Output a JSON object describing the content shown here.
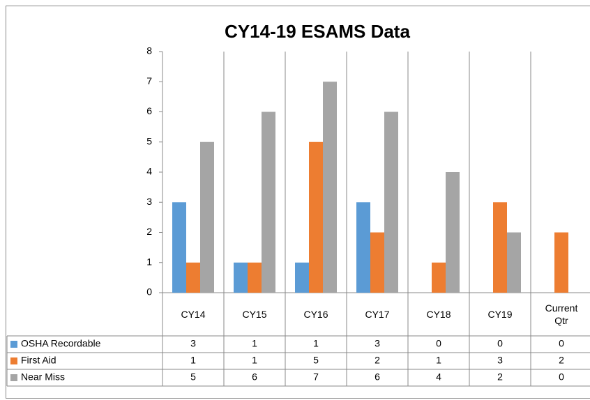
{
  "chart_data": {
    "type": "bar",
    "title": "CY14-19 ESAMS Data",
    "categories": [
      "CY14",
      "CY15",
      "CY16",
      "CY17",
      "CY18",
      "CY19",
      "Current Qtr"
    ],
    "series": [
      {
        "name": "OSHA Recordable",
        "color": "#5b9bd5",
        "values": [
          3,
          1,
          1,
          3,
          0,
          0,
          0
        ]
      },
      {
        "name": "First Aid",
        "color": "#ed7d31",
        "values": [
          1,
          1,
          5,
          2,
          1,
          3,
          2
        ]
      },
      {
        "name": "Near Miss",
        "color": "#a5a5a5",
        "values": [
          5,
          6,
          7,
          6,
          4,
          2,
          0
        ]
      }
    ],
    "ylim": [
      0,
      8
    ],
    "yticks": [
      0,
      1,
      2,
      3,
      4,
      5,
      6,
      7,
      8
    ],
    "grid": false,
    "data_table": true
  }
}
